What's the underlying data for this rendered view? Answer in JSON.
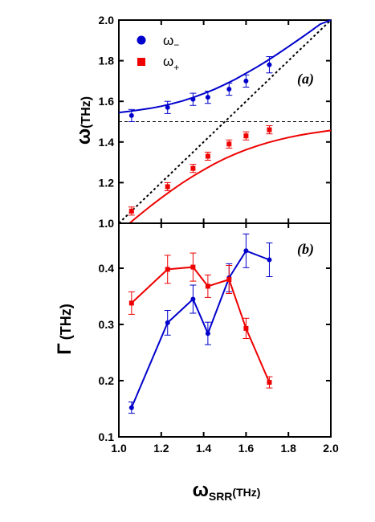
{
  "chart_data": [
    {
      "type": "line",
      "panel_label": "(a)",
      "ylabel_symbol": "ω",
      "ylabel_unit": "(THz)",
      "xlim": [
        1.0,
        2.0
      ],
      "ylim": [
        1.0,
        2.0
      ],
      "xticks": [
        1.0,
        1.2,
        1.4,
        1.6,
        1.8,
        2.0
      ],
      "yticks": [
        1.0,
        1.2,
        1.4,
        1.6,
        1.8,
        2.0
      ],
      "xtick_labels": [
        "1.0",
        "1.2",
        "1.4",
        "1.6",
        "1.8",
        "2.0"
      ],
      "ytick_labels": [
        "1.0",
        "1.2",
        "1.4",
        "1.6",
        "1.8",
        "2.0"
      ],
      "legend": {
        "placement": "top-left",
        "entries": [
          {
            "symbol": "ω",
            "sub": "−",
            "marker": "circle",
            "color": "#0000cc"
          },
          {
            "symbol": "ω",
            "sub": "+",
            "marker": "square",
            "color": "#ee0000"
          }
        ]
      },
      "series": [
        {
          "name": "ω−",
          "color": "#0000cc",
          "marker": "circle",
          "x": [
            1.06,
            1.23,
            1.35,
            1.42,
            1.52,
            1.6,
            1.71
          ],
          "y": [
            1.53,
            1.57,
            1.61,
            1.62,
            1.66,
            1.7,
            1.78
          ],
          "err": [
            0.03,
            0.03,
            0.03,
            0.03,
            0.03,
            0.03,
            0.04
          ]
        },
        {
          "name": "ω+",
          "color": "#ee0000",
          "marker": "square",
          "x": [
            1.06,
            1.23,
            1.35,
            1.42,
            1.52,
            1.6,
            1.71
          ],
          "y": [
            1.06,
            1.18,
            1.27,
            1.33,
            1.39,
            1.43,
            1.46
          ],
          "err": [
            0.02,
            0.02,
            0.02,
            0.02,
            0.02,
            0.02,
            0.02
          ]
        }
      ],
      "fit_curves": [
        {
          "color": "#0000cc",
          "x": [
            1.0,
            1.05,
            1.1,
            1.15,
            1.2,
            1.25,
            1.3,
            1.35,
            1.4,
            1.45,
            1.5,
            1.55,
            1.6,
            1.65,
            1.7,
            1.75,
            1.8,
            1.85,
            1.9,
            1.95,
            2.0
          ],
          "y": [
            1.545,
            1.551,
            1.558,
            1.566,
            1.576,
            1.588,
            1.602,
            1.619,
            1.638,
            1.659,
            1.683,
            1.709,
            1.738,
            1.768,
            1.8,
            1.834,
            1.869,
            1.905,
            1.942,
            1.98,
            2.019
          ]
        },
        {
          "color": "#ee0000",
          "x": [
            1.0,
            1.05,
            1.1,
            1.15,
            1.2,
            1.25,
            1.3,
            1.35,
            1.4,
            1.45,
            1.5,
            1.55,
            1.6,
            1.65,
            1.7,
            1.75,
            1.8,
            1.85,
            1.9,
            1.95,
            2.0
          ],
          "y": [
            0.955,
            1.0,
            1.043,
            1.085,
            1.125,
            1.163,
            1.199,
            1.232,
            1.263,
            1.292,
            1.318,
            1.341,
            1.362,
            1.38,
            1.396,
            1.41,
            1.422,
            1.433,
            1.442,
            1.45,
            1.457
          ]
        }
      ],
      "reference_lines": [
        {
          "kind": "diagonal",
          "x": [
            1.0,
            2.0
          ],
          "y": [
            1.0,
            2.0
          ],
          "style": "dotted"
        },
        {
          "kind": "horizontal",
          "y": 1.5,
          "style": "dashed"
        }
      ],
      "grid": false
    },
    {
      "type": "line",
      "panel_label": "(b)",
      "ylabel_symbol": "Γ",
      "ylabel_unit": "(THz)",
      "xlabel_symbol": "ω",
      "xlabel_sub": "SRR",
      "xlabel_unit": "(THz)",
      "xlim": [
        1.0,
        2.0
      ],
      "ylim": [
        0.1,
        0.48
      ],
      "xticks": [
        1.0,
        1.2,
        1.4,
        1.6,
        1.8,
        2.0
      ],
      "yticks": [
        0.1,
        0.2,
        0.3,
        0.4
      ],
      "xtick_labels": [
        "1.0",
        "1.2",
        "1.4",
        "1.6",
        "1.8",
        "2.0"
      ],
      "ytick_labels": [
        "0.1",
        "0.2",
        "0.3",
        "0.4"
      ],
      "series": [
        {
          "name": "ω−",
          "color": "#0000cc",
          "marker": "circle",
          "x": [
            1.06,
            1.23,
            1.35,
            1.42,
            1.52,
            1.6,
            1.71
          ],
          "y": [
            0.152,
            0.303,
            0.345,
            0.284,
            0.383,
            0.431,
            0.415
          ],
          "err": [
            0.01,
            0.022,
            0.025,
            0.02,
            0.025,
            0.03,
            0.03
          ]
        },
        {
          "name": "ω+",
          "color": "#ee0000",
          "marker": "square",
          "x": [
            1.06,
            1.23,
            1.35,
            1.42,
            1.52,
            1.6,
            1.71
          ],
          "y": [
            0.338,
            0.398,
            0.402,
            0.368,
            0.38,
            0.293,
            0.197
          ],
          "err": [
            0.02,
            0.025,
            0.025,
            0.02,
            0.025,
            0.018,
            0.01
          ]
        }
      ],
      "grid": false
    }
  ]
}
